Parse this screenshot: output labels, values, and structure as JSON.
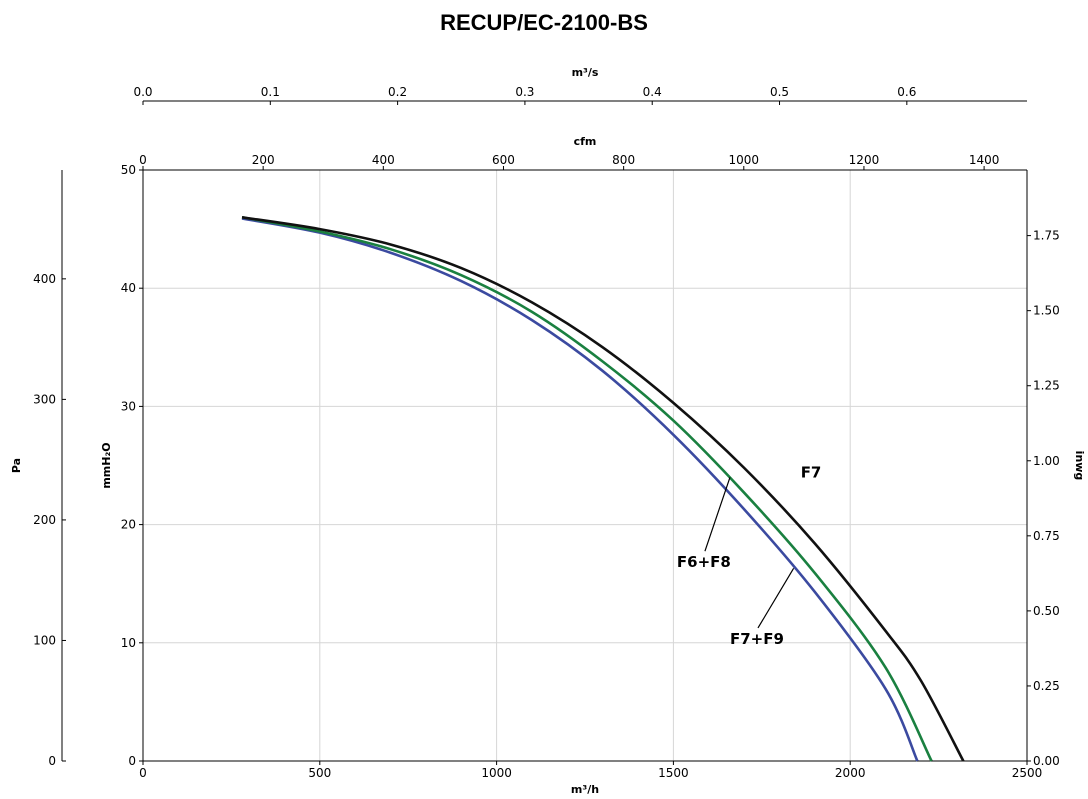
{
  "chart_data": {
    "type": "line",
    "title": "RECUP/EC-2100-BS",
    "x_axes": {
      "bottom": {
        "label": "m³/h",
        "range": [
          0,
          2500
        ],
        "ticks": [
          0,
          500,
          1000,
          1500,
          2000,
          2500
        ],
        "tick_labels": [
          "0",
          "500",
          "1000",
          "1500",
          "2000",
          "2500"
        ]
      },
      "top_inner": {
        "label": "cfm",
        "range": [
          0,
          1471.4
        ],
        "ticks": [
          0,
          200,
          400,
          600,
          800,
          1000,
          1200,
          1400
        ],
        "tick_labels": [
          "0",
          "200",
          "400",
          "600",
          "800",
          "1000",
          "1200",
          "1400"
        ]
      },
      "top_outer": {
        "label": "m³/s",
        "range": [
          0,
          0.6944
        ],
        "ticks": [
          0.0,
          0.1,
          0.2,
          0.3,
          0.4,
          0.5,
          0.6
        ],
        "tick_labels": [
          "0.0",
          "0.1",
          "0.2",
          "0.3",
          "0.4",
          "0.5",
          "0.6"
        ]
      }
    },
    "y_axes": {
      "left_inner": {
        "label": "mmH₂O",
        "range": [
          0,
          50
        ],
        "ticks": [
          0,
          10,
          20,
          30,
          40,
          50
        ],
        "tick_labels": [
          "0",
          "10",
          "20",
          "30",
          "40",
          "50"
        ]
      },
      "left_outer": {
        "label": "Pa",
        "range": [
          0,
          490.3
        ],
        "ticks": [
          0,
          100,
          200,
          300,
          400
        ],
        "tick_labels": [
          "0",
          "100",
          "200",
          "300",
          "400"
        ]
      },
      "right": {
        "label": "inwg",
        "range": [
          0,
          1.9685
        ],
        "ticks": [
          0.0,
          0.25,
          0.5,
          0.75,
          1.0,
          1.25,
          1.5,
          1.75
        ],
        "tick_labels": [
          "0.00",
          "0.25",
          "0.50",
          "0.75",
          "1.00",
          "1.25",
          "1.50",
          "1.75"
        ]
      }
    },
    "grid": true,
    "series": [
      {
        "name": "F7",
        "color": "#111111",
        "x": [
          280,
          500,
          700,
          900,
          1100,
          1300,
          1500,
          1700,
          1900,
          2100,
          2200,
          2320
        ],
        "y": [
          46.0,
          45.0,
          43.7,
          41.7,
          38.8,
          35.0,
          30.3,
          24.8,
          18.4,
          11.0,
          6.8,
          0
        ]
      },
      {
        "name": "F6+F8",
        "color": "#1a8040",
        "x": [
          280,
          500,
          700,
          900,
          1100,
          1300,
          1500,
          1700,
          1900,
          2100,
          2230
        ],
        "y": [
          46.0,
          44.8,
          43.3,
          41.1,
          38.0,
          33.8,
          28.8,
          22.7,
          15.9,
          7.9,
          0
        ]
      },
      {
        "name": "F7+F9",
        "color": "#3b4aa0",
        "x": [
          280,
          500,
          700,
          900,
          1100,
          1300,
          1500,
          1700,
          1900,
          2100,
          2190
        ],
        "y": [
          45.9,
          44.7,
          43.0,
          40.6,
          37.3,
          33.0,
          27.6,
          21.3,
          14.3,
          6.1,
          0
        ]
      }
    ],
    "annotations": [
      {
        "text": "F7",
        "x": 1860,
        "y": 24
      },
      {
        "text": "F6+F8",
        "x": 1510,
        "y": 16.4,
        "arrow_to": [
          1660,
          24
        ]
      },
      {
        "text": "F7+F9",
        "x": 1660,
        "y": 9.9,
        "arrow_to": [
          1840,
          16.3
        ]
      }
    ]
  }
}
